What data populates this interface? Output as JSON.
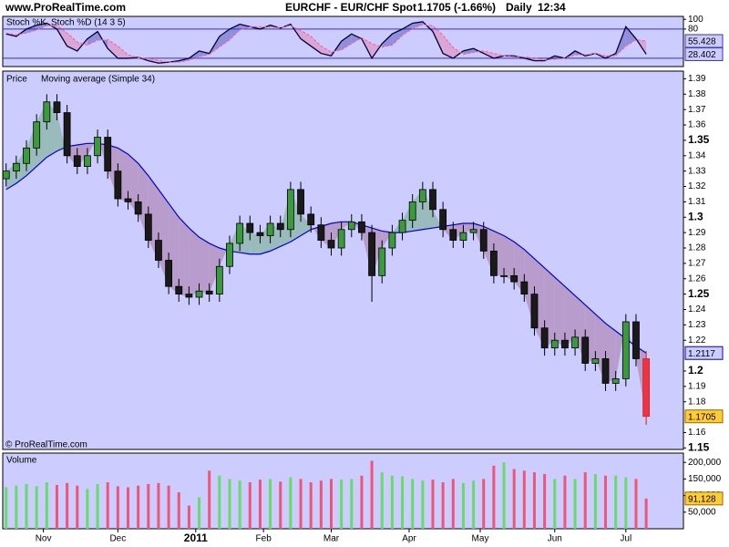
{
  "header": {
    "site": "www.ProRealTime.com",
    "title": "EURCHF - EUR/CHF Spot",
    "quote": "1.1705 (-1.66%)",
    "period": "Daily",
    "time": "12:34",
    "copyright": "© ProRealTime.com"
  },
  "x_axis": {
    "x": [
      0,
      3,
      6,
      9,
      12,
      15,
      18,
      21,
      24,
      27,
      30,
      33,
      36,
      39,
      42,
      45,
      48,
      51,
      54,
      57,
      60,
      63,
      66,
      69,
      72,
      75,
      78,
      81,
      84,
      87,
      90,
      93,
      96,
      99,
      102,
      105,
      108,
      111,
      114,
      117,
      120,
      123,
      126,
      129,
      132,
      135,
      138,
      141,
      144,
      147,
      150,
      153,
      156,
      159,
      162,
      165,
      168,
      171,
      174,
      177,
      180,
      183,
      186,
      189
    ],
    "xlim": [
      -1,
      200
    ],
    "xticks": [
      {
        "value": 11,
        "label": "Nov"
      },
      {
        "value": 33,
        "label": "Dec"
      },
      {
        "value": 56,
        "label": "2011"
      },
      {
        "value": 76,
        "label": "Feb"
      },
      {
        "value": 96,
        "label": "Mar"
      },
      {
        "value": 119,
        "label": "Apr"
      },
      {
        "value": 140,
        "label": "May"
      },
      {
        "value": 162,
        "label": "Jun"
      },
      {
        "value": 183,
        "label": "Jul"
      }
    ]
  },
  "chart_data": [
    {
      "type": "line",
      "background": "#ccccff",
      "ylim": [
        3,
        106
      ],
      "yticks": [
        100,
        80
      ],
      "levels": [
        80,
        20
      ],
      "level_color": "#3333cc",
      "fill_up_color": "#8f8fdd",
      "fill_down_color": "#d9a6d6",
      "series": [
        {
          "name": "Stoch %K",
          "color": "#000033",
          "values": [
            70,
            65,
            80,
            88,
            92,
            80,
            45,
            35,
            60,
            75,
            40,
            20,
            20,
            22,
            15,
            10,
            12,
            15,
            20,
            35,
            30,
            65,
            80,
            90,
            85,
            80,
            88,
            82,
            90,
            60,
            45,
            30,
            25,
            55,
            70,
            60,
            20,
            50,
            70,
            80,
            92,
            95,
            75,
            30,
            20,
            35,
            40,
            30,
            20,
            25,
            25,
            20,
            15,
            15,
            25,
            20,
            35,
            25,
            30,
            20,
            30,
            85,
            60,
            28.402
          ]
        },
        {
          "name": "Stoch %D (14 3 5)",
          "color": "#ff6699",
          "dash": true,
          "values": [
            72,
            68,
            72,
            78,
            87,
            87,
            72,
            53,
            47,
            57,
            58,
            45,
            27,
            21,
            19,
            16,
            12,
            12,
            16,
            23,
            28,
            43,
            58,
            78,
            85,
            85,
            84,
            83,
            87,
            77,
            65,
            45,
            33,
            37,
            50,
            62,
            50,
            43,
            47,
            67,
            81,
            89,
            87,
            67,
            42,
            28,
            32,
            35,
            30,
            25,
            23,
            23,
            20,
            17,
            18,
            20,
            27,
            27,
            30,
            25,
            25,
            45,
            58,
            55.428
          ]
        }
      ]
    },
    {
      "type": "candlestick",
      "background": "#ccccff",
      "ylim": [
        1.149,
        1.395
      ],
      "yticks": [
        1.15,
        1.16,
        1.18,
        1.19,
        1.2,
        1.22,
        1.23,
        1.24,
        1.25,
        1.26,
        1.27,
        1.28,
        1.29,
        1.3,
        1.31,
        1.32,
        1.33,
        1.34,
        1.35,
        1.36,
        1.37,
        1.38,
        1.39
      ],
      "fill_above_color": "#99bbbb",
      "fill_below_color": "#b79ccc",
      "series": [
        {
          "name": "Price",
          "up_color": "#3c9a3c",
          "down_color": "#1a1a1a",
          "last_color": "#ffcc33",
          "open": [
            1.325,
            1.33,
            1.335,
            1.345,
            1.362,
            1.375,
            1.368,
            1.34,
            1.333,
            1.34,
            1.352,
            1.33,
            1.312,
            1.31,
            1.302,
            1.285,
            1.272,
            1.255,
            1.25,
            1.248,
            1.252,
            1.25,
            1.268,
            1.283,
            1.296,
            1.29,
            1.288,
            1.296,
            1.292,
            1.318,
            1.302,
            1.295,
            1.285,
            1.28,
            1.292,
            1.297,
            1.29,
            1.262,
            1.28,
            1.29,
            1.298,
            1.31,
            1.318,
            1.305,
            1.292,
            1.285,
            1.29,
            1.292,
            1.278,
            1.262,
            1.262,
            1.258,
            1.25,
            1.228,
            1.215,
            1.22,
            1.215,
            1.222,
            1.205,
            1.208,
            1.192,
            1.195,
            1.232,
            1.208
          ],
          "high": [
            1.335,
            1.34,
            1.35,
            1.367,
            1.38,
            1.38,
            1.373,
            1.345,
            1.345,
            1.357,
            1.357,
            1.335,
            1.317,
            1.315,
            1.307,
            1.29,
            1.277,
            1.26,
            1.255,
            1.257,
            1.257,
            1.273,
            1.288,
            1.301,
            1.301,
            1.295,
            1.301,
            1.301,
            1.323,
            1.323,
            1.307,
            1.3,
            1.29,
            1.297,
            1.302,
            1.302,
            1.295,
            1.285,
            1.295,
            1.303,
            1.315,
            1.323,
            1.323,
            1.31,
            1.297,
            1.295,
            1.297,
            1.297,
            1.283,
            1.267,
            1.267,
            1.263,
            1.255,
            1.233,
            1.225,
            1.225,
            1.227,
            1.227,
            1.213,
            1.213,
            1.2,
            1.237,
            1.237,
            1.213
          ],
          "low": [
            1.32,
            1.325,
            1.33,
            1.34,
            1.357,
            1.363,
            1.335,
            1.328,
            1.328,
            1.335,
            1.325,
            1.307,
            1.305,
            1.297,
            1.28,
            1.267,
            1.25,
            1.245,
            1.243,
            1.243,
            1.245,
            1.245,
            1.263,
            1.278,
            1.285,
            1.283,
            1.283,
            1.287,
            1.287,
            1.297,
            1.29,
            1.28,
            1.275,
            1.275,
            1.287,
            1.285,
            1.245,
            1.257,
            1.275,
            1.285,
            1.293,
            1.305,
            1.3,
            1.287,
            1.28,
            1.28,
            1.285,
            1.273,
            1.257,
            1.257,
            1.253,
            1.245,
            1.223,
            1.21,
            1.21,
            1.21,
            1.21,
            1.2,
            1.2,
            1.187,
            1.187,
            1.19,
            1.203,
            1.165
          ],
          "close": [
            1.33,
            1.335,
            1.345,
            1.362,
            1.375,
            1.368,
            1.34,
            1.333,
            1.34,
            1.352,
            1.33,
            1.312,
            1.31,
            1.302,
            1.285,
            1.272,
            1.255,
            1.25,
            1.248,
            1.252,
            1.25,
            1.268,
            1.283,
            1.296,
            1.29,
            1.288,
            1.296,
            1.292,
            1.318,
            1.302,
            1.295,
            1.285,
            1.28,
            1.292,
            1.297,
            1.29,
            1.262,
            1.28,
            1.29,
            1.298,
            1.31,
            1.318,
            1.305,
            1.292,
            1.285,
            1.29,
            1.292,
            1.278,
            1.262,
            1.262,
            1.258,
            1.25,
            1.228,
            1.215,
            1.22,
            1.215,
            1.222,
            1.205,
            1.208,
            1.192,
            1.195,
            1.232,
            1.208,
            1.1705
          ]
        },
        {
          "name": "Moving average (Simple 34)",
          "color": "#0000cc",
          "values": [
            1.318,
            1.322,
            1.327,
            1.333,
            1.339,
            1.343,
            1.346,
            1.347,
            1.348,
            1.348,
            1.347,
            1.345,
            1.341,
            1.335,
            1.327,
            1.318,
            1.309,
            1.3,
            1.293,
            1.287,
            1.283,
            1.28,
            1.278,
            1.277,
            1.276,
            1.276,
            1.278,
            1.281,
            1.284,
            1.288,
            1.292,
            1.294,
            1.296,
            1.297,
            1.297,
            1.295,
            1.293,
            1.291,
            1.29,
            1.29,
            1.291,
            1.292,
            1.293,
            1.294,
            1.295,
            1.296,
            1.296,
            1.294,
            1.291,
            1.288,
            1.284,
            1.279,
            1.273,
            1.267,
            1.261,
            1.255,
            1.249,
            1.243,
            1.237,
            1.231,
            1.226,
            1.221,
            1.216,
            1.2117
          ]
        }
      ]
    },
    {
      "type": "bar",
      "background": "#ccccff",
      "ylim": [
        0,
        228000
      ],
      "up_color": "#66dd66",
      "down_color": "#ee5577",
      "last_color": "#ffcc33",
      "yticks": [
        {
          "value": 200000,
          "label": "200,000"
        },
        {
          "value": 150000,
          "label": "150,000"
        },
        {
          "value": 100000,
          "label": "100,000"
        },
        {
          "value": 50000,
          "label": "50,000"
        }
      ],
      "series": [
        {
          "name": "Volume",
          "color": "#ee5577",
          "values": [
            125000,
            130000,
            135000,
            128000,
            140000,
            132000,
            138000,
            130000,
            120000,
            135000,
            140000,
            128000,
            125000,
            130000,
            135000,
            138000,
            130000,
            110000,
            70000,
            95000,
            175000,
            160000,
            150000,
            145000,
            140000,
            148000,
            150000,
            142000,
            155000,
            150000,
            140000,
            145000,
            150000,
            148000,
            150000,
            160000,
            205000,
            170000,
            160000,
            158000,
            150000,
            145000,
            148000,
            140000,
            150000,
            138000,
            145000,
            150000,
            190000,
            200000,
            180000,
            175000,
            170000,
            165000,
            150000,
            160000,
            150000,
            170000,
            165000,
            160000,
            160000,
            155000,
            150000,
            91128
          ],
          "value_labels": [
            null,
            null,
            null,
            null,
            null,
            null,
            null,
            null,
            null,
            null,
            null,
            null,
            null,
            null,
            null,
            null,
            null,
            null,
            null,
            null,
            null,
            null,
            null,
            null,
            null,
            null,
            null,
            null,
            null,
            null,
            null,
            null,
            null,
            null,
            null,
            null,
            null,
            null,
            null,
            null,
            null,
            null,
            null,
            null,
            null,
            null,
            null,
            null,
            null,
            null,
            null,
            null,
            null,
            null,
            null,
            null,
            null,
            null,
            null,
            null,
            null,
            null,
            null,
            "91,128"
          ]
        }
      ]
    }
  ]
}
